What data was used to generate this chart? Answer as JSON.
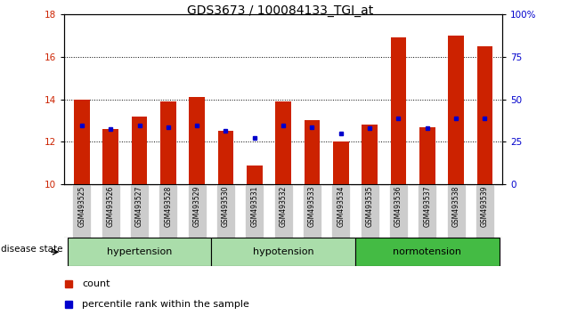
{
  "title": "GDS3673 / 100084133_TGI_at",
  "samples": [
    "GSM493525",
    "GSM493526",
    "GSM493527",
    "GSM493528",
    "GSM493529",
    "GSM493530",
    "GSM493531",
    "GSM493532",
    "GSM493533",
    "GSM493534",
    "GSM493535",
    "GSM493536",
    "GSM493537",
    "GSM493538",
    "GSM493539"
  ],
  "red_values": [
    14.0,
    12.6,
    13.2,
    13.9,
    14.1,
    12.5,
    10.9,
    13.9,
    13.0,
    12.0,
    12.8,
    16.9,
    12.7,
    17.0,
    16.5
  ],
  "blue_values": [
    12.75,
    12.6,
    12.75,
    12.7,
    12.75,
    12.5,
    12.2,
    12.75,
    12.7,
    12.4,
    12.65,
    13.1,
    12.65,
    13.1,
    13.1
  ],
  "ylim_left": [
    10,
    18
  ],
  "ylim_right": [
    0,
    100
  ],
  "yticks_left": [
    10,
    12,
    14,
    16,
    18
  ],
  "yticks_right": [
    0,
    25,
    50,
    75,
    100
  ],
  "bar_color": "#cc2200",
  "marker_color": "#0000cc",
  "group_defs": [
    {
      "start": 0,
      "end": 5,
      "label": "hypertension",
      "color": "#aaddaa"
    },
    {
      "start": 5,
      "end": 10,
      "label": "hypotension",
      "color": "#aaddaa"
    },
    {
      "start": 10,
      "end": 15,
      "label": "normotension",
      "color": "#44bb44"
    }
  ],
  "disease_state_label": "disease state",
  "legend_items": [
    "count",
    "percentile rank within the sample"
  ],
  "baseline": 10,
  "bar_width": 0.55,
  "bg_color": "#ffffff",
  "label_box_color": "#cccccc"
}
